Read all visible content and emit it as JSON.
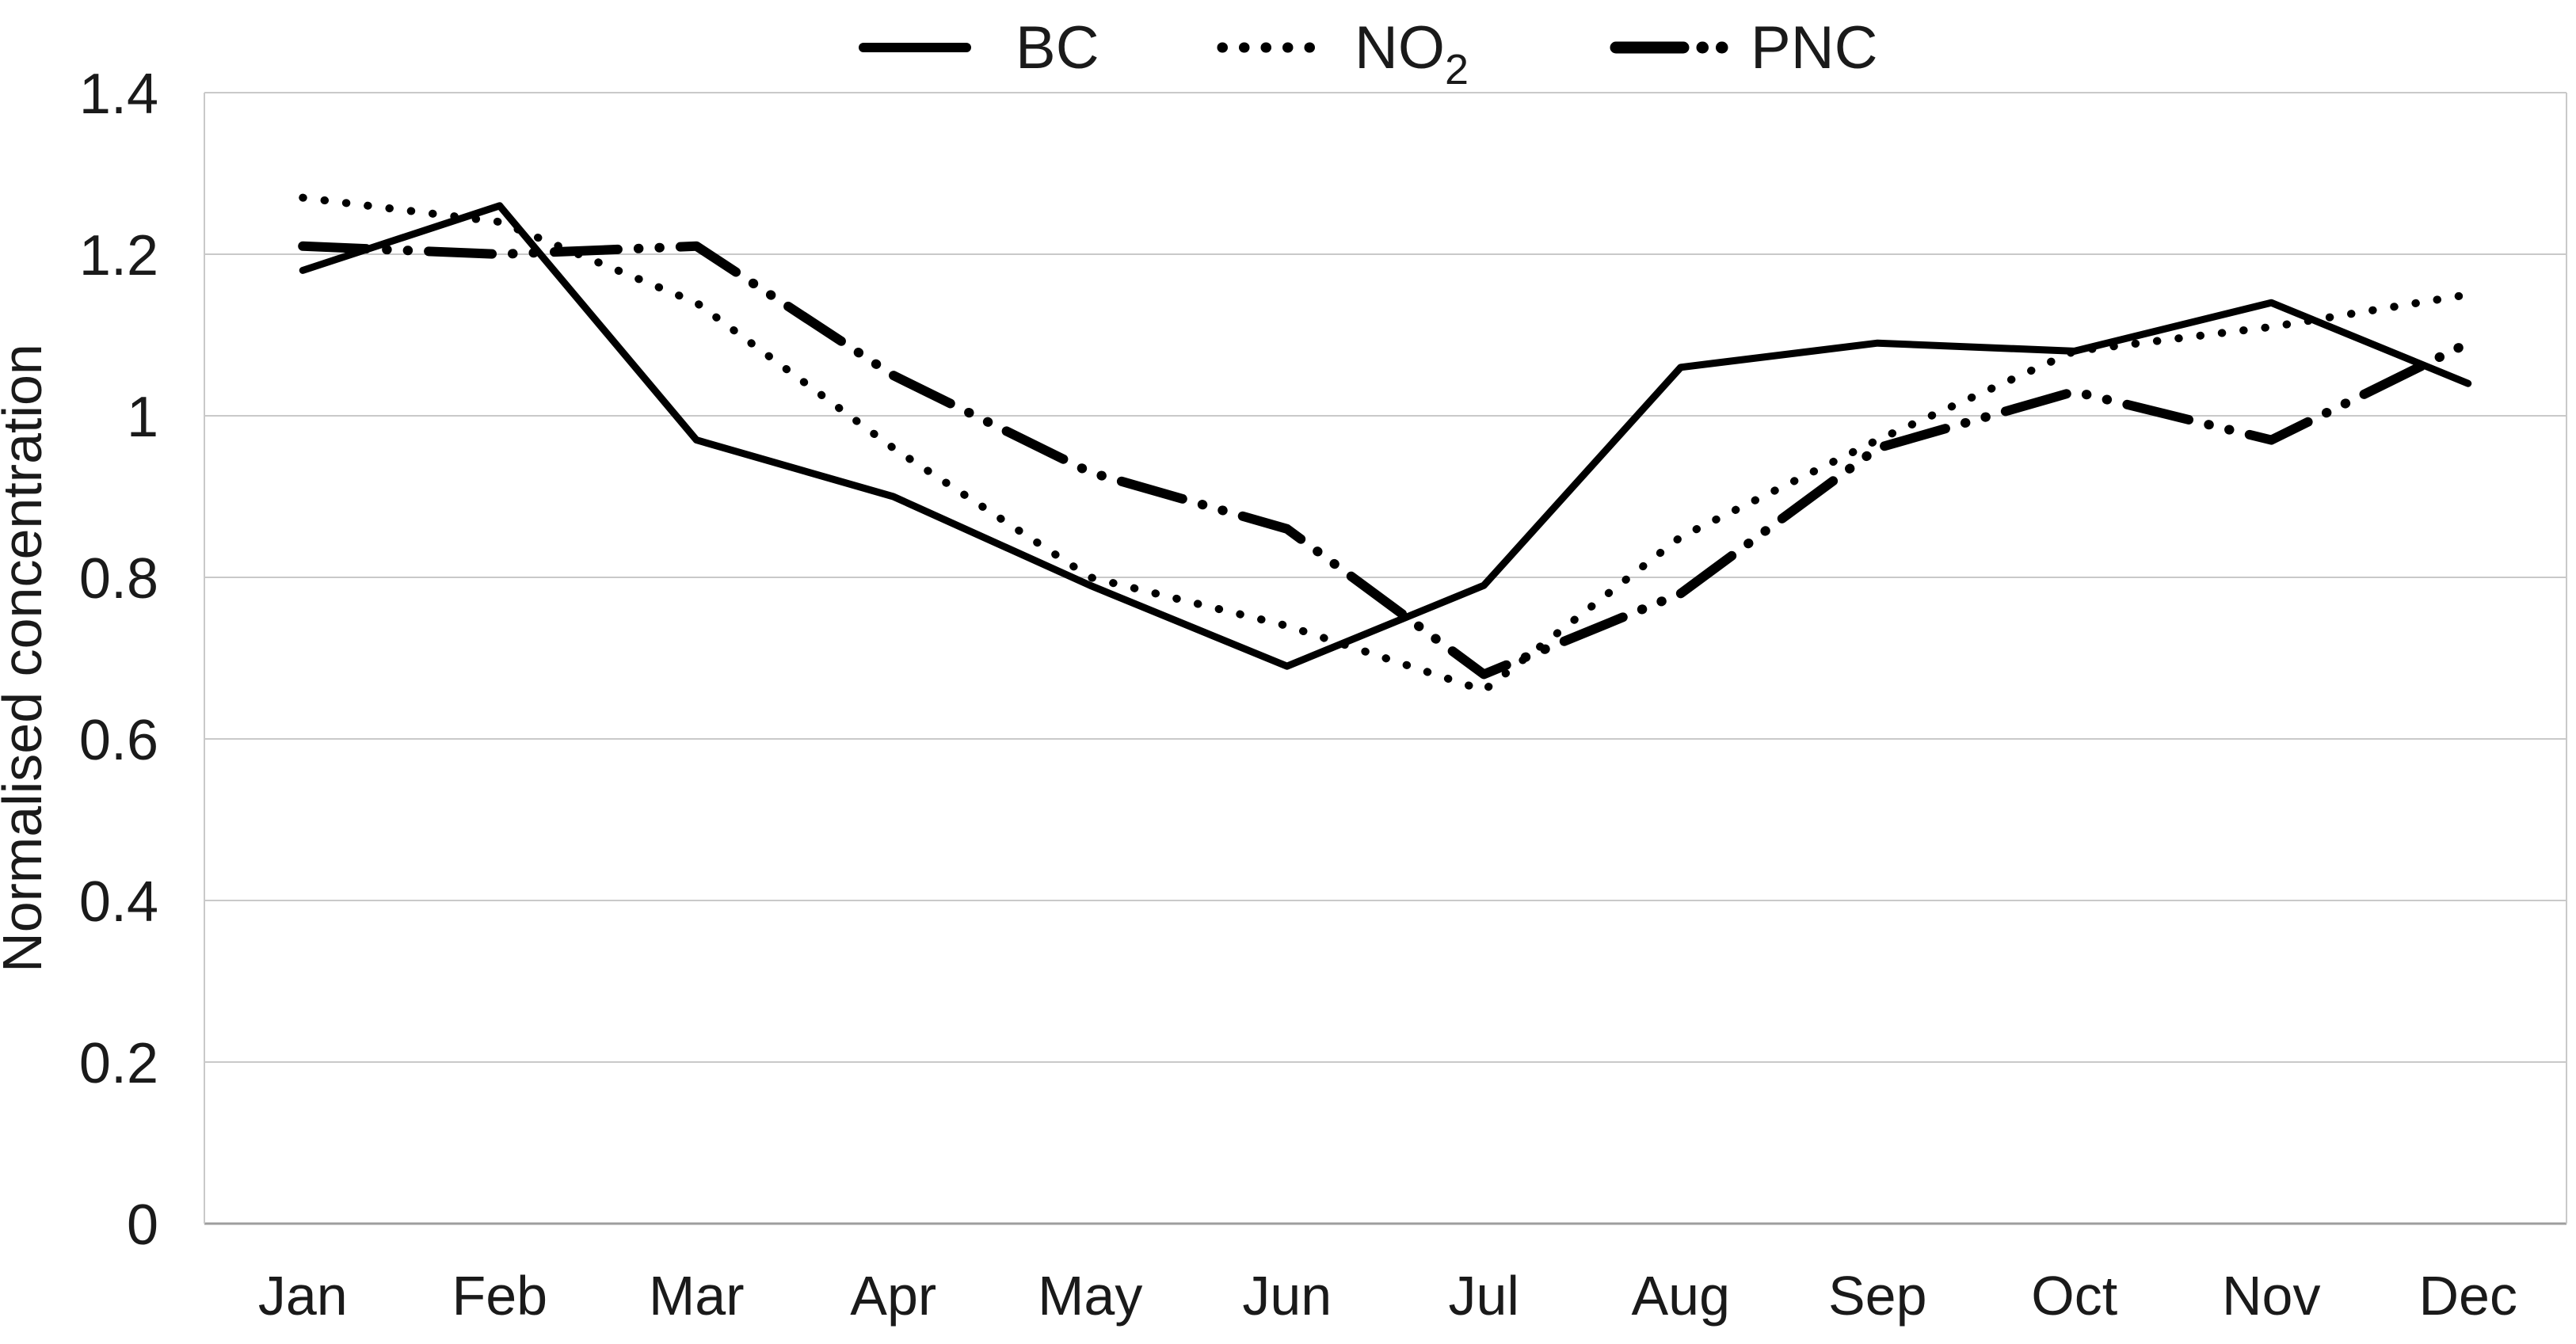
{
  "chart_data": {
    "type": "line",
    "title": "",
    "categories": [
      "Jan",
      "Feb",
      "Mar",
      "Apr",
      "May",
      "Jun",
      "Jul",
      "Aug",
      "Sep",
      "Oct",
      "Nov",
      "Dec"
    ],
    "series": [
      {
        "name": "BC",
        "line_style": "solid",
        "color": "#000000",
        "values": [
          1.18,
          1.26,
          0.97,
          0.9,
          0.79,
          0.69,
          0.79,
          1.06,
          1.09,
          1.08,
          1.14,
          1.04
        ]
      },
      {
        "name": "NO2",
        "line_style": "dotted",
        "color": "#000000",
        "values": [
          1.27,
          1.24,
          1.14,
          0.96,
          0.8,
          0.74,
          0.66,
          0.85,
          0.97,
          1.08,
          1.11,
          1.15
        ]
      },
      {
        "name": "PNC",
        "line_style": "dash-dot-dot",
        "color": "#000000",
        "values": [
          1.21,
          1.2,
          1.21,
          1.05,
          0.93,
          0.86,
          0.68,
          0.78,
          0.96,
          1.03,
          0.97,
          1.09
        ]
      }
    ],
    "legend": [
      {
        "label": "BC",
        "sub": ""
      },
      {
        "label": "NO",
        "sub": "2"
      },
      {
        "label": "PNC",
        "sub": ""
      }
    ],
    "xlabel": "",
    "ylabel": "Normalised concentration",
    "ylim": [
      0,
      1.4
    ],
    "yticks": [
      0,
      0.2,
      0.4,
      0.6,
      0.8,
      1.0,
      1.2,
      1.4
    ],
    "ytick_labels": [
      "0",
      "0.2",
      "0.4",
      "0.6",
      "0.8",
      "1",
      "1.2",
      "1.4"
    ],
    "grid": "horizontal",
    "legend_position": "top-center",
    "colors": {
      "line": "#000000",
      "grid": "#c9c9c9",
      "axis": "#9e9e9e",
      "text": "#1a1a1a",
      "background": "#ffffff"
    }
  }
}
